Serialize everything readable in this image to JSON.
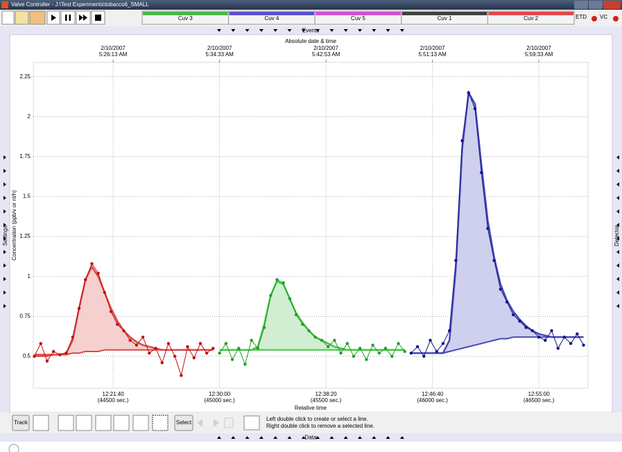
{
  "window": {
    "title": "Valve Controller - J:\\Test Experiments\\tobacco6_SMALL"
  },
  "tabs": [
    {
      "label": "Cuv 3",
      "color": "#46b946"
    },
    {
      "label": "Cuv 4",
      "color": "#5a4fd0"
    },
    {
      "label": "Cuv 5",
      "color": "#d050d0"
    },
    {
      "label": "Cuv 1",
      "color": "#404040"
    },
    {
      "label": "Cuv 2",
      "color": "#e04848"
    }
  ],
  "status_icons": [
    "ETD",
    "VC"
  ],
  "events_label": "Events",
  "side_labels": {
    "left": "Settings",
    "right": "Detector"
  },
  "chart_data": {
    "type": "line",
    "top_axis_label": "Absolute date & time",
    "x_label": "Relative time",
    "y_label": "Concentration (ppb/v or nl/h)",
    "xlim": [
      44125,
      46731
    ],
    "ylim": [
      0.3,
      2.34
    ],
    "xticks": [
      {
        "value": 44500,
        "label": "12:21:40",
        "sublabel": "(44500 sec.)"
      },
      {
        "value": 45000,
        "label": "12:30:00",
        "sublabel": "(45000 sec.)"
      },
      {
        "value": 45500,
        "label": "12:38:20",
        "sublabel": "(45500 sec.)"
      },
      {
        "value": 46000,
        "label": "12:46:40",
        "sublabel": "(46000 sec.)"
      },
      {
        "value": 46500,
        "label": "12:55:00",
        "sublabel": "(46500 sec.)"
      }
    ],
    "top_ticks": [
      {
        "value": 44500,
        "date": "2/10/2007",
        "time": "5:26:13 AM"
      },
      {
        "value": 45000,
        "date": "2/10/2007",
        "time": "5:34:33 AM"
      },
      {
        "value": 45500,
        "date": "2/10/2007",
        "time": "5:42:53 AM"
      },
      {
        "value": 46000,
        "date": "2/10/2007",
        "time": "5:51:13 AM"
      },
      {
        "value": 46500,
        "date": "2/10/2007",
        "time": "5:59:33 AM"
      }
    ],
    "yticks": [
      0.5,
      0.75,
      1,
      1.25,
      1.5,
      1.75,
      2,
      2.25
    ],
    "grid": true,
    "series": [
      {
        "color": "#c01010",
        "fit_color": "#d84848",
        "fill_color": "#f6cfcf",
        "x": [
          44130,
          44160,
          44190,
          44220,
          44250,
          44280,
          44310,
          44340,
          44370,
          44400,
          44430,
          44460,
          44490,
          44520,
          44550,
          44580,
          44610,
          44640,
          44670,
          44700,
          44730,
          44760,
          44790,
          44820,
          44850,
          44880,
          44910,
          44940,
          44970
        ],
        "values": [
          0.5,
          0.58,
          0.47,
          0.53,
          0.51,
          0.52,
          0.62,
          0.8,
          0.98,
          1.08,
          1.02,
          0.9,
          0.78,
          0.7,
          0.66,
          0.6,
          0.57,
          0.62,
          0.52,
          0.55,
          0.46,
          0.58,
          0.5,
          0.38,
          0.56,
          0.49,
          0.58,
          0.52,
          0.55
        ],
        "fit": [
          0.51,
          0.51,
          0.51,
          0.51,
          0.51,
          0.52,
          0.6,
          0.8,
          0.98,
          1.06,
          1.0,
          0.9,
          0.8,
          0.72,
          0.66,
          0.62,
          0.59,
          0.57,
          0.56,
          0.55,
          0.54,
          0.54,
          0.54,
          0.54,
          0.54,
          0.54,
          0.54,
          0.54,
          0.54
        ],
        "baseline": [
          0.5,
          0.5,
          0.5,
          0.51,
          0.51,
          0.51,
          0.52,
          0.52,
          0.53,
          0.53,
          0.53,
          0.54,
          0.54,
          0.54,
          0.54,
          0.54,
          0.54,
          0.54,
          0.54,
          0.54,
          0.54,
          0.54,
          0.54,
          0.54,
          0.54,
          0.54,
          0.54,
          0.54,
          0.54
        ]
      },
      {
        "color": "#20a020",
        "fit_color": "#44c444",
        "fill_color": "#d2eed2",
        "x": [
          45000,
          45030,
          45060,
          45090,
          45120,
          45150,
          45180,
          45210,
          45240,
          45270,
          45300,
          45330,
          45360,
          45390,
          45420,
          45450,
          45480,
          45510,
          45540,
          45570,
          45600,
          45630,
          45660,
          45690,
          45720,
          45750,
          45780,
          45810,
          45840,
          45870
        ],
        "values": [
          0.52,
          0.58,
          0.48,
          0.55,
          0.45,
          0.6,
          0.55,
          0.68,
          0.88,
          0.98,
          0.96,
          0.86,
          0.76,
          0.7,
          0.66,
          0.62,
          0.6,
          0.56,
          0.6,
          0.52,
          0.58,
          0.5,
          0.55,
          0.48,
          0.57,
          0.52,
          0.55,
          0.5,
          0.58,
          0.53
        ],
        "fit": [
          0.54,
          0.54,
          0.54,
          0.54,
          0.54,
          0.54,
          0.56,
          0.7,
          0.88,
          0.97,
          0.95,
          0.86,
          0.77,
          0.71,
          0.66,
          0.62,
          0.6,
          0.58,
          0.56,
          0.55,
          0.54,
          0.54,
          0.54,
          0.54,
          0.54,
          0.54,
          0.54,
          0.54,
          0.54,
          0.54
        ],
        "baseline": [
          0.54,
          0.54,
          0.54,
          0.54,
          0.54,
          0.54,
          0.54,
          0.54,
          0.54,
          0.54,
          0.54,
          0.54,
          0.54,
          0.54,
          0.54,
          0.54,
          0.54,
          0.54,
          0.54,
          0.54,
          0.54,
          0.54,
          0.54,
          0.54,
          0.54,
          0.54,
          0.54,
          0.54,
          0.54,
          0.54
        ]
      },
      {
        "color": "#14148a",
        "fit_color": "#4848b8",
        "fill_color": "#cfcfee",
        "x": [
          45900,
          45930,
          45960,
          45990,
          46020,
          46050,
          46080,
          46110,
          46140,
          46170,
          46200,
          46230,
          46260,
          46290,
          46320,
          46350,
          46380,
          46410,
          46440,
          46470,
          46500,
          46530,
          46560,
          46590,
          46620,
          46650,
          46680,
          46710
        ],
        "values": [
          0.52,
          0.56,
          0.5,
          0.6,
          0.53,
          0.58,
          0.66,
          1.1,
          1.85,
          2.15,
          2.05,
          1.65,
          1.3,
          1.1,
          0.92,
          0.84,
          0.76,
          0.72,
          0.68,
          0.66,
          0.62,
          0.6,
          0.66,
          0.55,
          0.62,
          0.58,
          0.64,
          0.57
        ],
        "fit": [
          0.52,
          0.52,
          0.52,
          0.52,
          0.52,
          0.52,
          0.6,
          1.05,
          1.8,
          2.15,
          2.08,
          1.7,
          1.35,
          1.12,
          0.95,
          0.85,
          0.78,
          0.73,
          0.69,
          0.66,
          0.64,
          0.63,
          0.62,
          0.62,
          0.62,
          0.62,
          0.62,
          0.62
        ],
        "baseline": [
          0.52,
          0.52,
          0.52,
          0.52,
          0.52,
          0.52,
          0.53,
          0.54,
          0.55,
          0.56,
          0.57,
          0.58,
          0.59,
          0.6,
          0.61,
          0.61,
          0.62,
          0.62,
          0.62,
          0.62,
          0.62,
          0.62,
          0.62,
          0.62,
          0.62,
          0.62,
          0.62,
          0.62
        ]
      }
    ]
  },
  "toolbar": {
    "track": "Track",
    "select": "Select",
    "hint_lines": [
      "Left double click to create or select a line.",
      "Right double click to remove a selected line."
    ]
  },
  "data_label": "Data"
}
